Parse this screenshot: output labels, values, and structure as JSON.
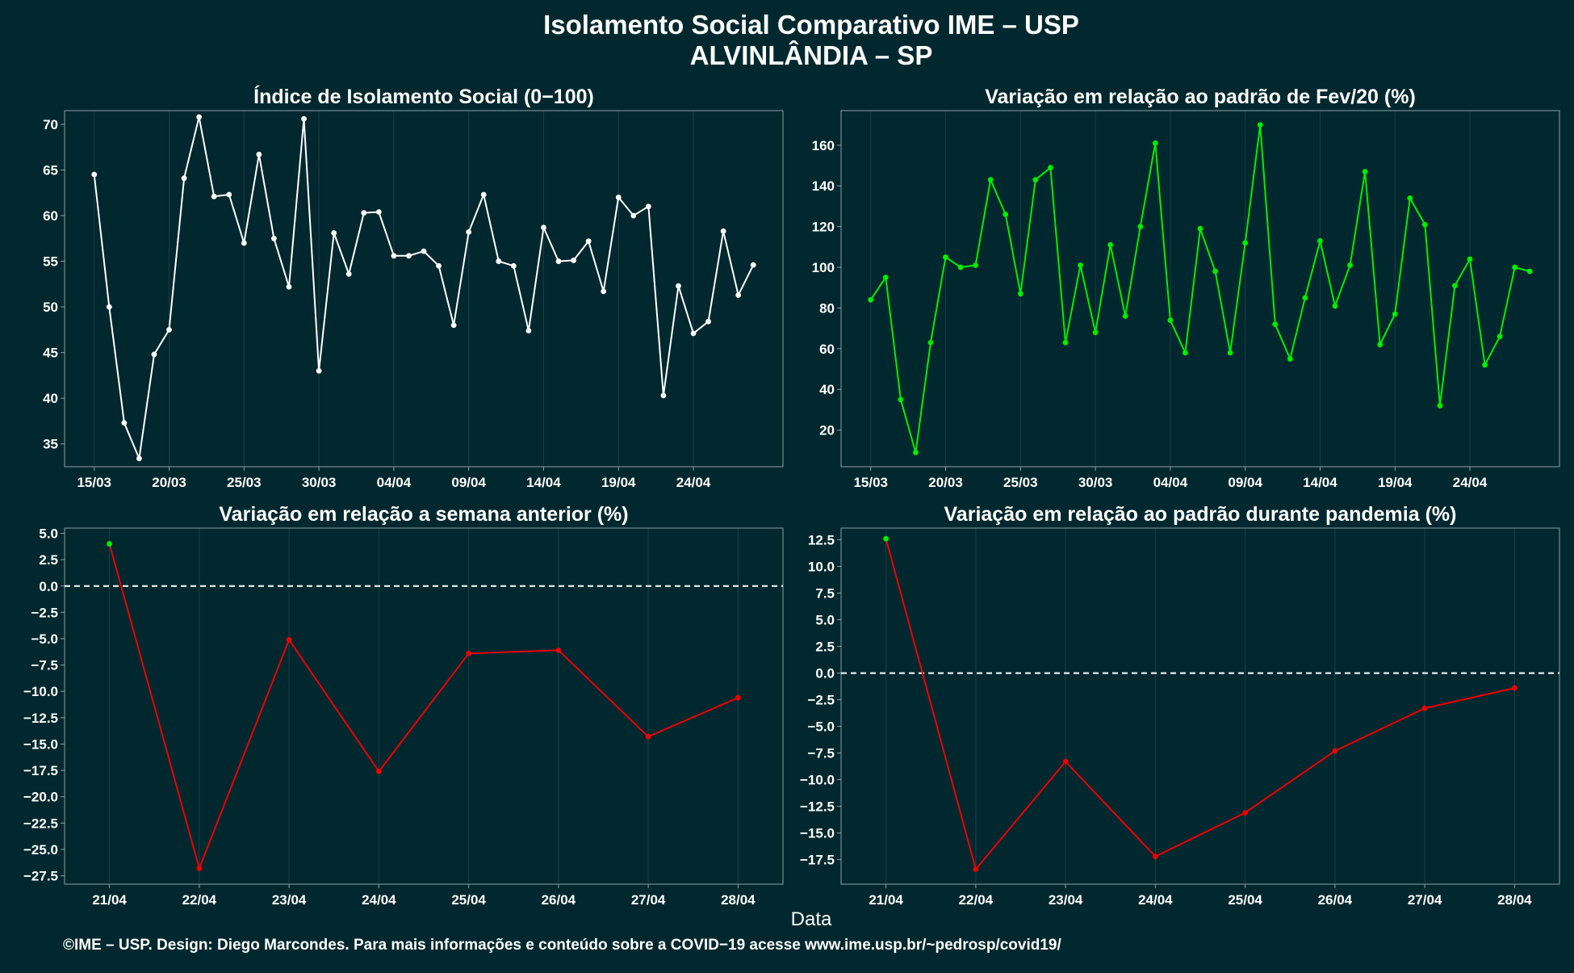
{
  "title_line1": "Isolamento Social Comparativo IME – USP",
  "title_line2": "ALVINLÂNDIA – SP",
  "xlabel": "Data",
  "footer": "©IME – USP. Design: Diego Marcondes. Para mais informações e conteúdo sobre a COVID−19 acesse www.ime.usp.br/~pedrosp/covid19/",
  "colors": {
    "background": "#02282f",
    "panel_border": "#8aa0a6",
    "grid": "#1b3e46",
    "white_series": "#ffffff",
    "green_series": "#00ee00",
    "red_series": "#ee0000"
  },
  "chart_data": [
    {
      "type": "line",
      "title": "Índice de Isolamento Social (0−100)",
      "x_start": "2020-03-15",
      "x_ticks": [
        "15/03",
        "20/03",
        "25/03",
        "30/03",
        "04/04",
        "09/04",
        "14/04",
        "19/04",
        "24/04"
      ],
      "ylim": [
        32.5,
        71.5
      ],
      "y_ticks": [
        "35",
        "40",
        "45",
        "50",
        "55",
        "60",
        "65",
        "70"
      ],
      "y_tick_values": [
        35,
        40,
        45,
        50,
        55,
        60,
        65,
        70
      ],
      "grid": true,
      "series": [
        {
          "color": "#ffffff",
          "values": [
            64.5,
            50.0,
            37.3,
            33.4,
            44.8,
            47.5,
            64.1,
            70.8,
            62.1,
            62.3,
            57.0,
            66.7,
            57.5,
            52.2,
            70.6,
            43.0,
            58.1,
            53.6,
            60.3,
            60.4,
            55.6,
            55.6,
            56.1,
            54.5,
            48.0,
            58.2,
            62.3,
            55.0,
            54.5,
            47.4,
            58.7,
            55.0,
            55.1,
            57.2,
            51.7,
            62.0,
            60.0,
            61.0,
            40.3,
            52.3,
            47.1,
            48.4,
            58.3,
            51.3,
            54.6
          ]
        }
      ]
    },
    {
      "type": "line",
      "title": "Variação em relação ao padrão de Fev/20 (%)",
      "x_start": "2020-03-15",
      "x_ticks": [
        "15/03",
        "20/03",
        "25/03",
        "30/03",
        "04/04",
        "09/04",
        "14/04",
        "19/04",
        "24/04"
      ],
      "ylim": [
        2,
        177
      ],
      "y_ticks": [
        "20",
        "40",
        "60",
        "80",
        "100",
        "120",
        "140",
        "160"
      ],
      "y_tick_values": [
        20,
        40,
        60,
        80,
        100,
        120,
        140,
        160
      ],
      "grid": true,
      "series": [
        {
          "color": "#00ee00",
          "values": [
            84,
            95,
            35,
            9,
            63,
            105,
            100,
            101,
            143,
            126,
            87,
            143,
            149,
            63,
            101,
            68,
            111,
            76,
            120,
            161,
            74,
            58,
            119,
            98,
            58,
            112,
            170,
            72,
            55,
            85,
            113,
            81,
            101,
            147,
            62,
            77,
            134,
            121,
            32,
            91,
            104,
            52,
            66,
            100,
            98
          ]
        }
      ]
    },
    {
      "type": "line",
      "title": "Variação em relação a semana anterior (%)",
      "categories": [
        "21/04",
        "22/04",
        "23/04",
        "24/04",
        "25/04",
        "26/04",
        "27/04",
        "28/04"
      ],
      "ylim": [
        -28.3,
        5.5
      ],
      "y_ticks": [
        "5.0",
        "2.5",
        "0.0",
        "−2.5",
        "−5.0",
        "−7.5",
        "−10.0",
        "−12.5",
        "−15.0",
        "−17.5",
        "−20.0",
        "−22.5",
        "−25.0",
        "−27.5"
      ],
      "y_tick_values": [
        5,
        2.5,
        0,
        -2.5,
        -5,
        -7.5,
        -10,
        -12.5,
        -15,
        -17.5,
        -20,
        -22.5,
        -25,
        -27.5
      ],
      "reference_line": 0,
      "grid": true,
      "series": [
        {
          "color": "#ee0000",
          "values": [
            4.0,
            -26.8,
            -5.1,
            -17.6,
            -6.4,
            -6.1,
            -14.3,
            -10.6
          ]
        }
      ]
    },
    {
      "type": "line",
      "title": "Variação em relação ao padrão durante pandemia (%)",
      "categories": [
        "21/04",
        "22/04",
        "23/04",
        "24/04",
        "25/04",
        "26/04",
        "27/04",
        "28/04"
      ],
      "ylim": [
        -19.8,
        13.6
      ],
      "y_ticks": [
        "12.5",
        "10.0",
        "7.5",
        "5.0",
        "2.5",
        "0.0",
        "−2.5",
        "−5.0",
        "−7.5",
        "−10.0",
        "−12.5",
        "−15.0",
        "−17.5"
      ],
      "y_tick_values": [
        12.5,
        10,
        7.5,
        5,
        2.5,
        0,
        -2.5,
        -5,
        -7.5,
        -10,
        -12.5,
        -15,
        -17.5
      ],
      "reference_line": 0,
      "grid": true,
      "series": [
        {
          "color": "#ee0000",
          "values": [
            12.6,
            -18.4,
            -8.3,
            -17.2,
            -13.1,
            -7.3,
            -3.3,
            -1.4
          ]
        }
      ]
    }
  ]
}
